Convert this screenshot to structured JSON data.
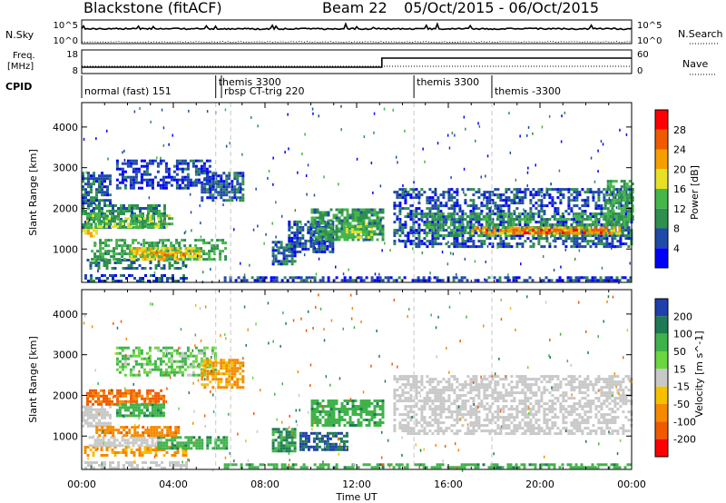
{
  "header": {
    "station": "Blackstone (fitACF)",
    "beam": "Beam 22",
    "date_range": "05/Oct/2015 - 06/Oct/2015"
  },
  "noise_panel": {
    "left_label": "N.Sky",
    "right_label": "N.Search",
    "left_ticks": [
      "10^5",
      "10^0"
    ],
    "right_ticks": [
      "10^5",
      "10^0"
    ]
  },
  "freq_panel": {
    "left_label_1": "Freq.",
    "left_label_2": "[MHz]",
    "right_label": "Nave",
    "left_ticks": [
      "18",
      "8"
    ],
    "right_ticks": [
      "60",
      "0"
    ]
  },
  "cpid_panel": {
    "label": "CPID",
    "segments": [
      {
        "start_hour": 0.0,
        "name": "normal (fast) 151",
        "row": 2
      },
      {
        "start_hour": 5.85,
        "name": "themis 3300",
        "row": 1
      },
      {
        "start_hour": 6.1,
        "name": "rbsp CT-trig 220",
        "row": 2
      },
      {
        "start_hour": 14.5,
        "name": "themis 3300",
        "row": 1
      },
      {
        "start_hour": 17.9,
        "name": "themis -3300",
        "row": 2
      }
    ]
  },
  "time_axis": {
    "label": "Time UT",
    "ticks": [
      "00:00",
      "04:00",
      "08:00",
      "12:00",
      "16:00",
      "20:00",
      "00:00"
    ]
  },
  "colors": {
    "power_scale": [
      "#0000ff",
      "#1f4aa8",
      "#2f8f4f",
      "#45b64a",
      "#e8e026",
      "#f5a000",
      "#f05a00",
      "#ff0000"
    ],
    "velocity_scale": [
      "#1f3faa",
      "#1e7a55",
      "#3fb34a",
      "#6ad640",
      "#c8c8c8",
      "#f5c000",
      "#f58a00",
      "#f05a00",
      "#ff0000"
    ],
    "ground_scatter": "#c8c8c8"
  },
  "chart_data": [
    {
      "type": "heatmap",
      "name": "power",
      "ylabel": "Slant Range [km]",
      "xlabel": "",
      "xlim": [
        0,
        24
      ],
      "ylim": [
        180,
        4600
      ],
      "yticks": [
        1000,
        2000,
        3000,
        4000
      ],
      "colorbar": {
        "label": "Power [dB]",
        "ticks": [
          4,
          8,
          12,
          16,
          20,
          24,
          28
        ],
        "range": [
          0,
          32
        ]
      },
      "regions": [
        {
          "t0": 0.0,
          "t1": 4.6,
          "r0": 200,
          "r1": 380,
          "value": 6
        },
        {
          "t0": 6.2,
          "t1": 24.0,
          "r0": 200,
          "r1": 330,
          "value": 5
        },
        {
          "t0": 0.0,
          "t1": 0.6,
          "r0": 1300,
          "r1": 1550,
          "value": 20
        },
        {
          "t0": 0.0,
          "t1": 3.6,
          "r0": 1500,
          "r1": 2100,
          "value": 10
        },
        {
          "t0": 0.2,
          "t1": 4.0,
          "r0": 1550,
          "r1": 1850,
          "value": 14
        },
        {
          "t0": 0.0,
          "t1": 1.3,
          "r0": 2100,
          "r1": 2900,
          "value": 6
        },
        {
          "t0": 0.1,
          "t1": 4.5,
          "r0": 550,
          "r1": 760,
          "value": 8
        },
        {
          "t0": 0.4,
          "t1": 6.3,
          "r0": 740,
          "r1": 1250,
          "value": 12
        },
        {
          "t0": 2.0,
          "t1": 5.2,
          "r0": 780,
          "r1": 1050,
          "value": 18
        },
        {
          "t0": 2.5,
          "t1": 4.5,
          "r0": 820,
          "r1": 950,
          "value": 22
        },
        {
          "t0": 1.5,
          "t1": 5.6,
          "r0": 2500,
          "r1": 3200,
          "value": 5
        },
        {
          "t0": 5.2,
          "t1": 7.0,
          "r0": 2200,
          "r1": 2900,
          "value": 7
        },
        {
          "t0": 8.3,
          "t1": 9.3,
          "r0": 600,
          "r1": 1200,
          "value": 7
        },
        {
          "t0": 9.0,
          "t1": 11.0,
          "r0": 900,
          "r1": 1700,
          "value": 6
        },
        {
          "t0": 10.0,
          "t1": 13.1,
          "r0": 1200,
          "r1": 2000,
          "value": 11
        },
        {
          "t0": 11.4,
          "t1": 12.6,
          "r0": 1250,
          "r1": 1650,
          "value": 16
        },
        {
          "t0": 13.6,
          "t1": 24.0,
          "r0": 1050,
          "r1": 2500,
          "value": 6
        },
        {
          "t0": 15.0,
          "t1": 24.0,
          "r0": 1300,
          "r1": 1900,
          "value": 12
        },
        {
          "t0": 17.0,
          "t1": 23.5,
          "r0": 1350,
          "r1": 1550,
          "value": 22
        },
        {
          "t0": 17.5,
          "t1": 23.0,
          "r0": 1400,
          "r1": 1500,
          "value": 26
        },
        {
          "t0": 22.8,
          "t1": 24.0,
          "r0": 1600,
          "r1": 2700,
          "value": 12
        }
      ]
    },
    {
      "type": "heatmap",
      "name": "velocity",
      "ylabel": "Slant Range [km]",
      "xlabel": "Time UT",
      "xlim": [
        0,
        24
      ],
      "ylim": [
        180,
        4600
      ],
      "yticks": [
        1000,
        2000,
        3000,
        4000
      ],
      "colorbar": {
        "label": "Velocity [m s^-1]",
        "ticks": [
          "200",
          "100",
          "50",
          "15",
          "-15",
          "-50",
          "-100",
          "-200"
        ]
      },
      "regions": [
        {
          "t0": 0.0,
          "t1": 4.6,
          "r0": 200,
          "r1": 380,
          "value": "ground"
        },
        {
          "t0": 6.2,
          "t1": 24.0,
          "r0": 200,
          "r1": 330,
          "value": 60
        },
        {
          "t0": 0.0,
          "t1": 1.2,
          "r0": 1250,
          "r1": 1750,
          "value": "ground"
        },
        {
          "t0": 0.2,
          "t1": 3.6,
          "r0": 1800,
          "r1": 2150,
          "value": -80
        },
        {
          "t0": 1.5,
          "t1": 3.6,
          "r0": 1500,
          "r1": 1800,
          "value": 60
        },
        {
          "t0": 0.1,
          "t1": 4.6,
          "r0": 520,
          "r1": 760,
          "value": -40
        },
        {
          "t0": 0.3,
          "t1": 3.5,
          "r0": 750,
          "r1": 1000,
          "value": "ground"
        },
        {
          "t0": 3.3,
          "t1": 6.3,
          "r0": 700,
          "r1": 1000,
          "value": 60
        },
        {
          "t0": 0.6,
          "t1": 4.2,
          "r0": 1000,
          "r1": 1250,
          "value": -60
        },
        {
          "t0": 1.5,
          "t1": 5.8,
          "r0": 2500,
          "r1": 3200,
          "value": 30
        },
        {
          "t0": 5.2,
          "t1": 7.0,
          "r0": 2200,
          "r1": 2900,
          "value": -40
        },
        {
          "t0": 8.3,
          "t1": 9.3,
          "r0": 600,
          "r1": 1200,
          "value": 80
        },
        {
          "t0": 9.5,
          "t1": 11.6,
          "r0": 650,
          "r1": 1100,
          "value": 150
        },
        {
          "t0": 10.0,
          "t1": 13.1,
          "r0": 1250,
          "r1": 1900,
          "value": 60
        },
        {
          "t0": 13.6,
          "t1": 24.0,
          "r0": 1050,
          "r1": 2500,
          "value": "ground"
        }
      ]
    }
  ]
}
